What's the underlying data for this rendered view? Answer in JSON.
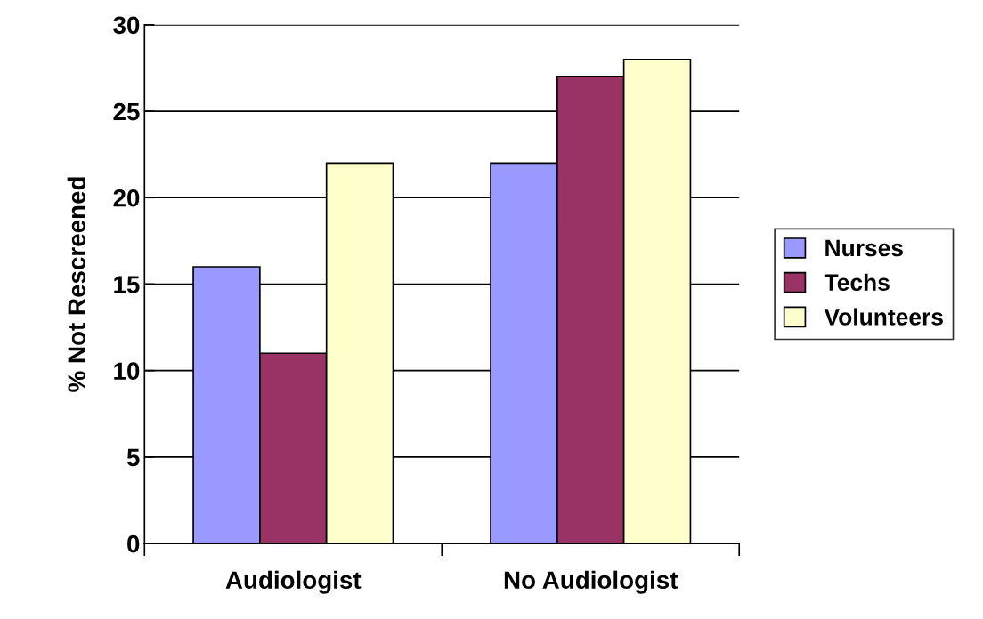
{
  "chart_data": {
    "type": "bar",
    "ylabel": "% Not Rescreened",
    "categories": [
      "Audiologist",
      "No Audiologist"
    ],
    "series": [
      {
        "name": "Nurses",
        "color": "#9999ff",
        "values": [
          16,
          22
        ]
      },
      {
        "name": "Techs",
        "color": "#993366",
        "values": [
          11,
          27
        ]
      },
      {
        "name": "Volunteers",
        "color": "#ffffcc",
        "values": [
          22,
          28
        ]
      }
    ],
    "ylim": [
      0,
      30
    ],
    "yticks": [
      0,
      5,
      10,
      15,
      20,
      25,
      30
    ],
    "grid": "y",
    "legend": "right"
  }
}
